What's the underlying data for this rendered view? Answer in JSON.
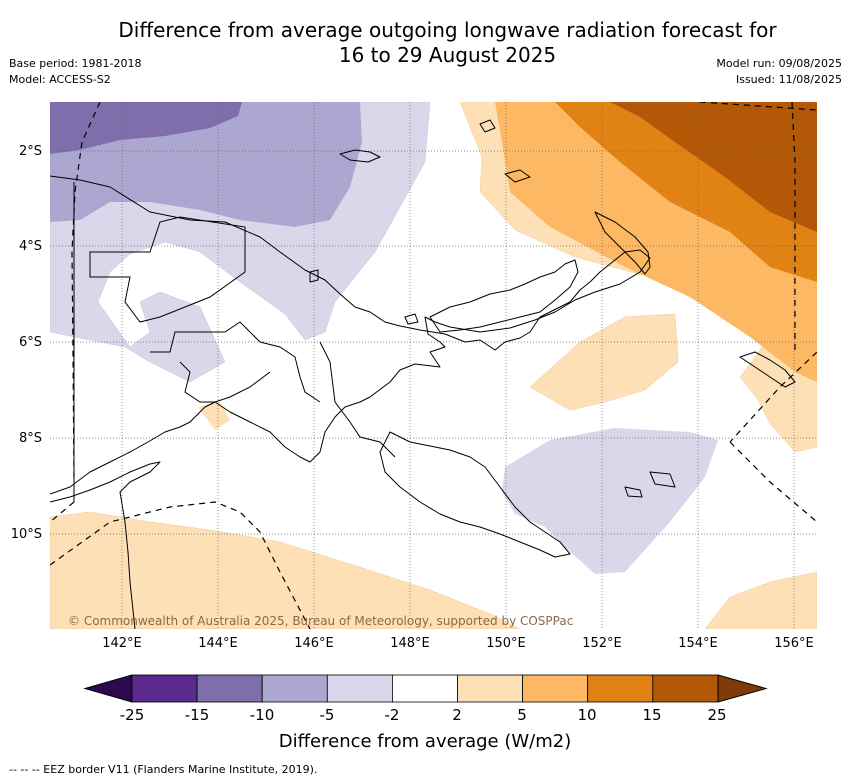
{
  "title_line1": "Difference from average outgoing longwave radiation forecast for",
  "title_line2": "16 to 29 August 2025",
  "base_period": "Base period: 1981-2018",
  "model": "Model: ACCESS-S2",
  "model_run": "Model run: 09/08/2025",
  "issued": "Issued: 11/08/2025",
  "lat_labels": [
    "2°S",
    "4°S",
    "6°S",
    "8°S",
    "10°S"
  ],
  "lon_labels": [
    "142°E",
    "144°E",
    "146°E",
    "148°E",
    "150°E",
    "152°E",
    "154°E",
    "156°E"
  ],
  "copyright": "© Commonwealth of Australia 2025, Bureau of Meteorology, supported by COSPPac",
  "colorbar": {
    "title": "Difference from average (W/m2)",
    "tick_labels": [
      "-25",
      "-15",
      "-10",
      "-5",
      "-2",
      "2",
      "5",
      "10",
      "15",
      "25"
    ],
    "colors": [
      "#2d0a4e",
      "#5a2a8c",
      "#7e6eab",
      "#aca7d0",
      "#d8d8ea",
      "#ffffff",
      "#fee0b6",
      "#fdb863",
      "#e08214",
      "#b35806",
      "#7f3b08"
    ]
  },
  "footnote": "--  --  -- EEZ border V11 (Flanders Marine Institute, 2019)."
}
